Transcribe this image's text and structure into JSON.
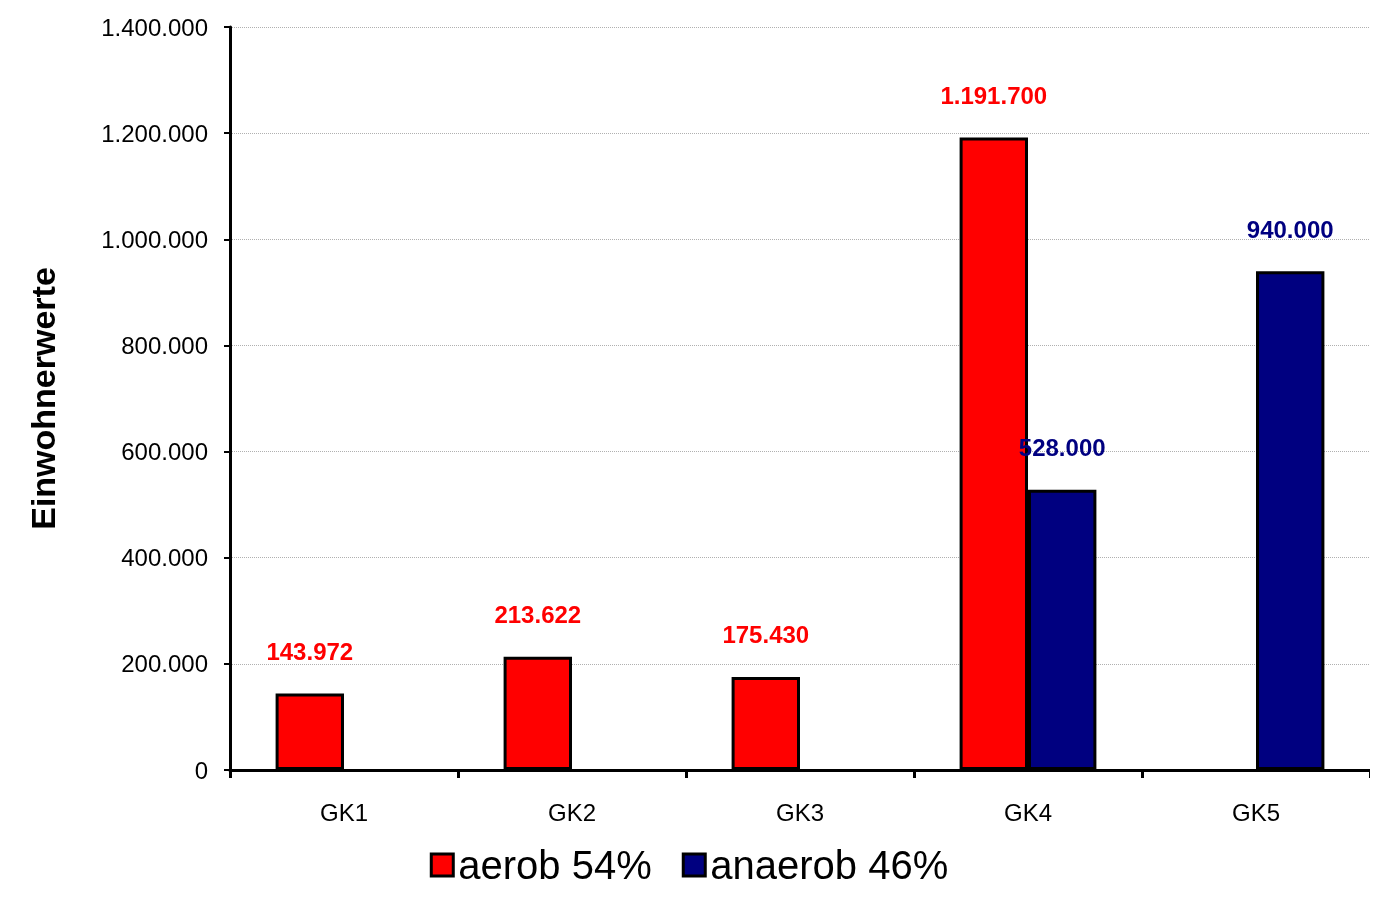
{
  "chart_data": {
    "type": "bar",
    "ylabel": "Einwohnerwerte",
    "categories": [
      "GK1",
      "GK2",
      "GK3",
      "GK4",
      "GK5"
    ],
    "series": [
      {
        "name": "aerob 54%",
        "color": "#ff0000",
        "values": [
          143972,
          213622,
          175430,
          1191700,
          null
        ],
        "value_labels": [
          "143.972",
          "213.622",
          "175.430",
          "1.191.700",
          null
        ]
      },
      {
        "name": "anaerob 46%",
        "color": "#000080",
        "values": [
          null,
          null,
          null,
          528000,
          940000
        ],
        "value_labels": [
          null,
          null,
          null,
          "528.000",
          "940.000"
        ]
      }
    ],
    "ylim": [
      0,
      1400000
    ],
    "yticks": [
      {
        "value": 0,
        "label": "0"
      },
      {
        "value": 200000,
        "label": "200.000"
      },
      {
        "value": 400000,
        "label": "400.000"
      },
      {
        "value": 600000,
        "label": "600.000"
      },
      {
        "value": 800000,
        "label": "800.000"
      },
      {
        "value": 1000000,
        "label": "1.000.000"
      },
      {
        "value": 1200000,
        "label": "1.200.000"
      },
      {
        "value": 1400000,
        "label": "1.400.000"
      }
    ],
    "grid": "y",
    "legend": "bottom"
  }
}
